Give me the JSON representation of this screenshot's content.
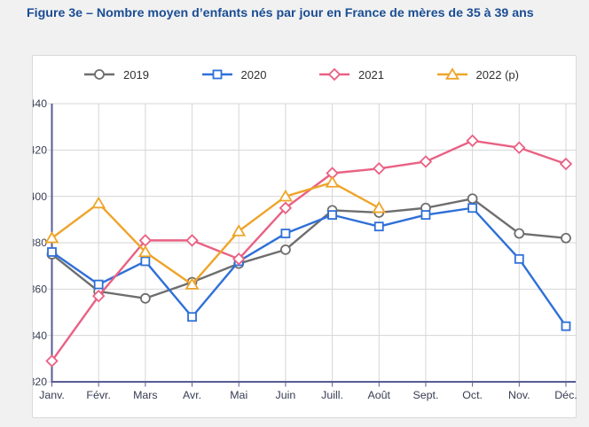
{
  "page": {
    "title": "Figure 3e – Nombre moyen d’enfants nés par jour en France de mères de 35 à 39 ans"
  },
  "chart_data": {
    "type": "line",
    "title": "Figure 3e – Nombre moyen d’enfants nés par jour en France de mères de 35 à 39 ans",
    "categories": [
      "Janv.",
      "Févr.",
      "Mars",
      "Avr.",
      "Mai",
      "Juin",
      "Juill.",
      "Août",
      "Sept.",
      "Oct.",
      "Nov.",
      "Déc."
    ],
    "series": [
      {
        "name": "2019",
        "marker": "circle",
        "color": "#6e6e6e",
        "values": [
          375,
          359,
          356,
          363,
          371,
          377,
          394,
          393,
          395,
          399,
          384,
          382
        ]
      },
      {
        "name": "2020",
        "marker": "square",
        "color": "#2f70d8",
        "values": [
          376,
          362,
          372,
          348,
          372,
          384,
          392,
          387,
          392,
          395,
          373,
          344
        ]
      },
      {
        "name": "2021",
        "marker": "diamond",
        "color": "#e96183",
        "values": [
          329,
          357,
          381,
          381,
          373,
          395,
          410,
          412,
          415,
          424,
          421,
          414
        ]
      },
      {
        "name": "2022 (p)",
        "marker": "triangle",
        "color": "#eea429",
        "values": [
          382,
          397,
          376,
          362,
          385,
          400,
          406,
          395,
          null,
          null,
          null,
          null
        ]
      }
    ],
    "ylim": [
      320,
      440
    ],
    "ytick_step": 20,
    "xlabel": "",
    "ylabel": "",
    "grid": true,
    "legend_position": "top",
    "colors": {
      "axis": "#585c94",
      "grid": "#d6d6d6",
      "tick_label": "#363c52",
      "title": "#1a4d94",
      "background": "#ffffff",
      "page_background": "#f1f1f1"
    }
  }
}
